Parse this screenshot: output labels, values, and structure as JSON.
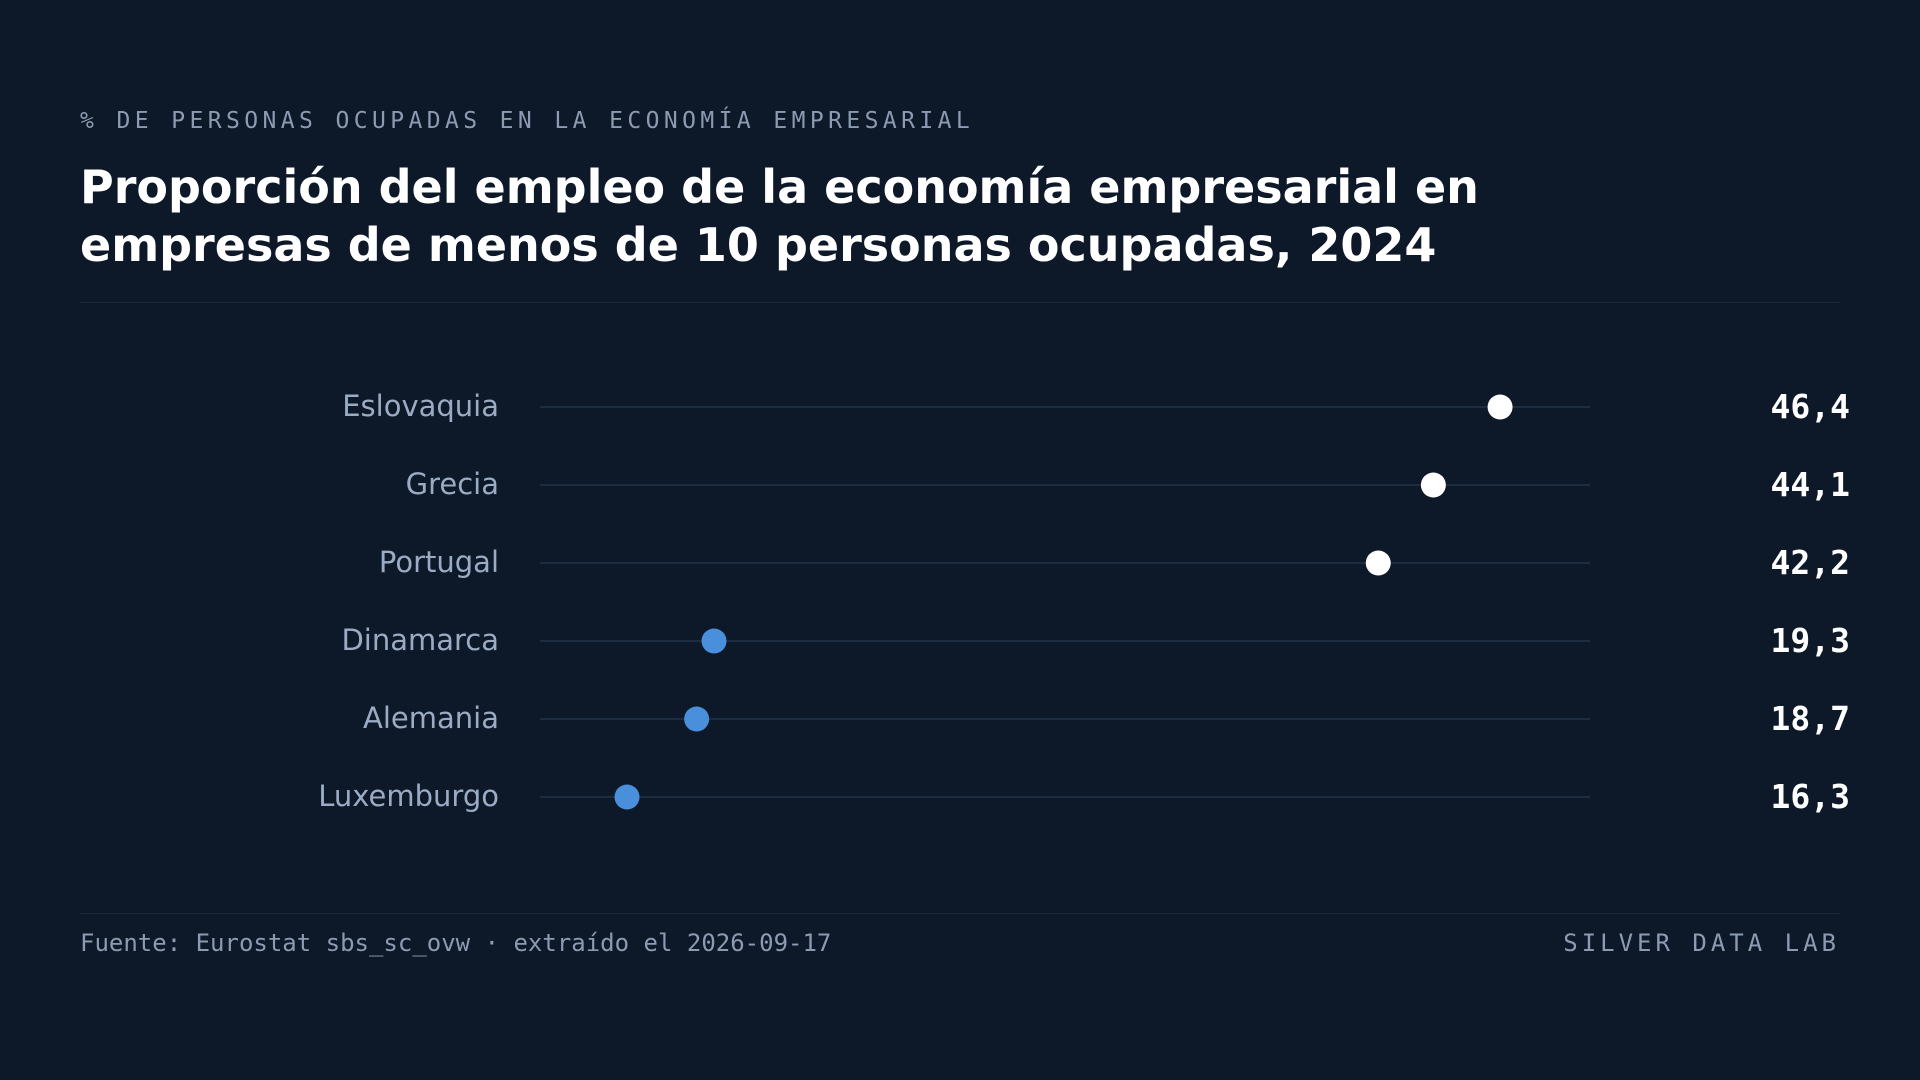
{
  "header": {
    "eyebrow": "% DE PERSONAS OCUPADAS EN LA ECONOMÍA EMPRESARIAL",
    "title": "Proporción del empleo de la economía empresarial en empresas de menos de 10 personas ocupadas, 2024"
  },
  "chart_data": {
    "type": "scatter",
    "subtype": "dot-plot",
    "title": "Proporción del empleo de la economía empresarial en empresas de menos de 10 personas ocupadas, 2024",
    "categories": [
      "Eslovaquia",
      "Grecia",
      "Portugal",
      "Dinamarca",
      "Alemania",
      "Luxemburgo"
    ],
    "values": [
      46.4,
      44.1,
      42.2,
      19.3,
      18.7,
      16.3
    ],
    "value_labels": [
      "46,4",
      "44,1",
      "42,2",
      "19,3",
      "18,7",
      "16,3"
    ],
    "xlim": [
      13.3,
      49.5
    ],
    "grid": false,
    "colors": {
      "high": "#ffffff",
      "low": "#4a8fdc",
      "track": "#233349",
      "category_label": "#9aabc3",
      "value_label": "#ffffff"
    }
  },
  "footer": {
    "source": "Fuente: Eurostat sbs_sc_ovw · extraído el 2026-09-17",
    "brand": "SILVER DATA LAB"
  }
}
